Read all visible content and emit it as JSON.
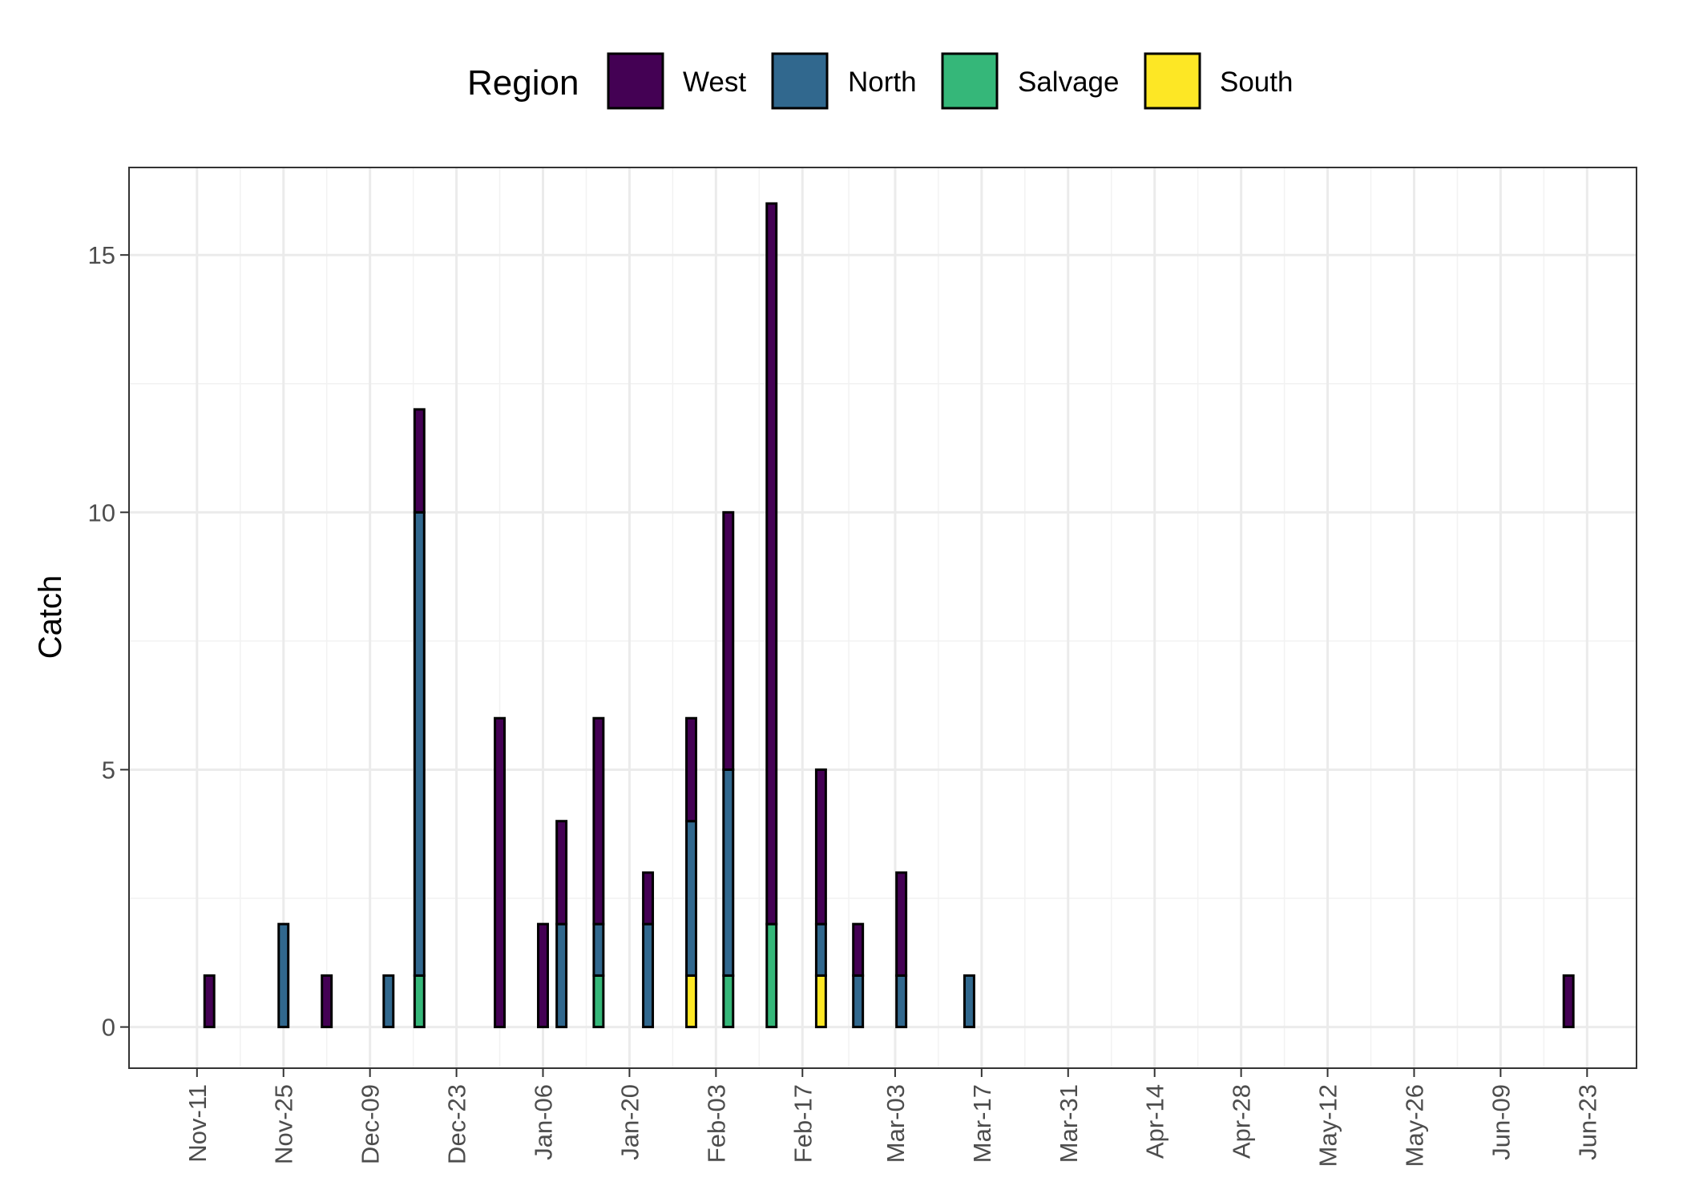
{
  "chart_data": {
    "type": "bar",
    "stacked": true,
    "title": "",
    "xlabel": "",
    "ylabel": "Catch",
    "ylim": [
      -0.8,
      16.7
    ],
    "yticks": [
      0,
      5,
      10,
      15
    ],
    "xlim": [
      "2023-10-31",
      "2024-07-01"
    ],
    "x_ticks": [
      {
        "date": "2023-11-11",
        "label": "Nov-11"
      },
      {
        "date": "2023-11-25",
        "label": "Nov-25"
      },
      {
        "date": "2023-12-09",
        "label": "Dec-09"
      },
      {
        "date": "2023-12-23",
        "label": "Dec-23"
      },
      {
        "date": "2024-01-06",
        "label": "Jan-06"
      },
      {
        "date": "2024-01-20",
        "label": "Jan-20"
      },
      {
        "date": "2024-02-03",
        "label": "Feb-03"
      },
      {
        "date": "2024-02-17",
        "label": "Feb-17"
      },
      {
        "date": "2024-03-03",
        "label": "Mar-03"
      },
      {
        "date": "2024-03-17",
        "label": "Mar-17"
      },
      {
        "date": "2024-03-31",
        "label": "Mar-31"
      },
      {
        "date": "2024-04-14",
        "label": "Apr-14"
      },
      {
        "date": "2024-04-28",
        "label": "Apr-28"
      },
      {
        "date": "2024-05-12",
        "label": "May-12"
      },
      {
        "date": "2024-05-26",
        "label": "May-26"
      },
      {
        "date": "2024-06-09",
        "label": "Jun-09"
      },
      {
        "date": "2024-06-23",
        "label": "Jun-23"
      }
    ],
    "grid": true,
    "legend": {
      "title": "Region",
      "position": "top"
    },
    "series": [
      {
        "name": "West",
        "color": "#440154"
      },
      {
        "name": "North",
        "color": "#31688E"
      },
      {
        "name": "Salvage",
        "color": "#35B779"
      },
      {
        "name": "South",
        "color": "#FDE725"
      }
    ],
    "bars": [
      {
        "date": "2023-11-13",
        "West": 1,
        "North": 0,
        "Salvage": 0,
        "South": 0
      },
      {
        "date": "2023-11-25",
        "West": 0,
        "North": 2,
        "Salvage": 0,
        "South": 0
      },
      {
        "date": "2023-12-02",
        "West": 1,
        "North": 0,
        "Salvage": 0,
        "South": 0
      },
      {
        "date": "2023-12-12",
        "West": 0,
        "North": 1,
        "Salvage": 0,
        "South": 0
      },
      {
        "date": "2023-12-17",
        "West": 2,
        "North": 9,
        "Salvage": 1,
        "South": 0
      },
      {
        "date": "2023-12-30",
        "West": 6,
        "North": 0,
        "Salvage": 0,
        "South": 0
      },
      {
        "date": "2024-01-06",
        "West": 2,
        "North": 0,
        "Salvage": 0,
        "South": 0
      },
      {
        "date": "2024-01-09",
        "West": 2,
        "North": 2,
        "Salvage": 0,
        "South": 0
      },
      {
        "date": "2024-01-15",
        "West": 4,
        "North": 1,
        "Salvage": 1,
        "South": 0
      },
      {
        "date": "2024-01-23",
        "West": 1,
        "North": 2,
        "Salvage": 0,
        "South": 0
      },
      {
        "date": "2024-01-30",
        "West": 2,
        "North": 3,
        "Salvage": 0,
        "South": 1
      },
      {
        "date": "2024-02-05",
        "West": 5,
        "North": 4,
        "Salvage": 1,
        "South": 0
      },
      {
        "date": "2024-02-12",
        "West": 14,
        "North": 0,
        "Salvage": 2,
        "South": 0
      },
      {
        "date": "2024-02-20",
        "West": 3,
        "North": 1,
        "Salvage": 0,
        "South": 1
      },
      {
        "date": "2024-02-26",
        "West": 1,
        "North": 1,
        "Salvage": 0,
        "South": 0
      },
      {
        "date": "2024-03-04",
        "West": 2,
        "North": 1,
        "Salvage": 0,
        "South": 0
      },
      {
        "date": "2024-03-15",
        "West": 0,
        "North": 1,
        "Salvage": 0,
        "South": 0
      },
      {
        "date": "2024-06-20",
        "West": 1,
        "North": 0,
        "Salvage": 0,
        "South": 0
      }
    ]
  }
}
